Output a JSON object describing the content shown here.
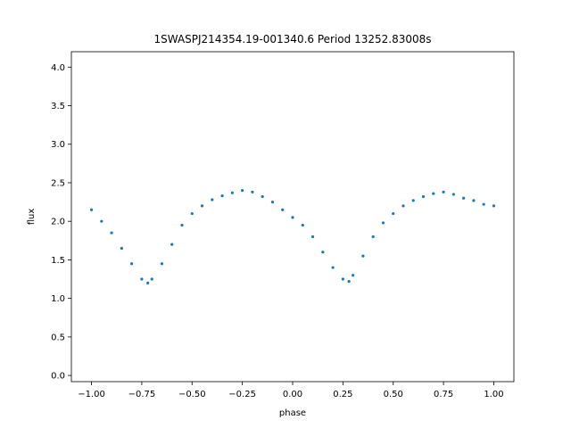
{
  "chart_data": {
    "type": "scatter",
    "title": "1SWASPJ214354.19-001340.6 Period 13252.83008s",
    "xlabel": "phase",
    "ylabel": "flux",
    "xlim": [
      -1.1,
      1.1
    ],
    "ylim": [
      -0.08,
      4.2
    ],
    "grid": false,
    "marker_color": "#1f77b4",
    "x_ticks": [
      {
        "value": -1.0,
        "label": "−1.00"
      },
      {
        "value": -0.75,
        "label": "−0.75"
      },
      {
        "value": -0.5,
        "label": "−0.50"
      },
      {
        "value": -0.25,
        "label": "−0.25"
      },
      {
        "value": 0.0,
        "label": "0.00"
      },
      {
        "value": 0.25,
        "label": "0.25"
      },
      {
        "value": 0.5,
        "label": "0.50"
      },
      {
        "value": 0.75,
        "label": "0.75"
      },
      {
        "value": 1.0,
        "label": "1.00"
      }
    ],
    "y_ticks": [
      {
        "value": 0.0,
        "label": "0.0"
      },
      {
        "value": 0.5,
        "label": "0.5"
      },
      {
        "value": 1.0,
        "label": "1.0"
      },
      {
        "value": 1.5,
        "label": "1.5"
      },
      {
        "value": 2.0,
        "label": "2.0"
      },
      {
        "value": 2.5,
        "label": "2.5"
      },
      {
        "value": 3.0,
        "label": "3.0"
      },
      {
        "value": 3.5,
        "label": "3.5"
      },
      {
        "value": 4.0,
        "label": "4.0"
      }
    ],
    "series": [
      {
        "x": [
          -1.0,
          -0.95,
          -0.9,
          -0.85,
          -0.8,
          -0.75,
          -0.72,
          -0.7,
          -0.65,
          -0.6,
          -0.55,
          -0.5,
          -0.45,
          -0.4,
          -0.35,
          -0.3,
          -0.25,
          -0.2,
          -0.15,
          -0.1,
          -0.05,
          0.0,
          0.05,
          0.1,
          0.15,
          0.2,
          0.25,
          0.28,
          0.3,
          0.35,
          0.4,
          0.45,
          0.5,
          0.55,
          0.6,
          0.65,
          0.7,
          0.75,
          0.8,
          0.85,
          0.9,
          0.95,
          1.0
        ],
        "y": [
          2.15,
          2.0,
          1.85,
          1.65,
          1.45,
          1.25,
          1.2,
          1.25,
          1.45,
          1.7,
          1.95,
          2.1,
          2.2,
          2.28,
          2.33,
          2.37,
          2.4,
          2.38,
          2.32,
          2.25,
          2.15,
          2.05,
          1.95,
          1.8,
          1.6,
          1.4,
          1.25,
          1.22,
          1.3,
          1.55,
          1.8,
          1.98,
          2.1,
          2.2,
          2.27,
          2.32,
          2.36,
          2.38,
          2.35,
          2.3,
          2.27,
          2.22,
          2.2
        ]
      }
    ]
  }
}
